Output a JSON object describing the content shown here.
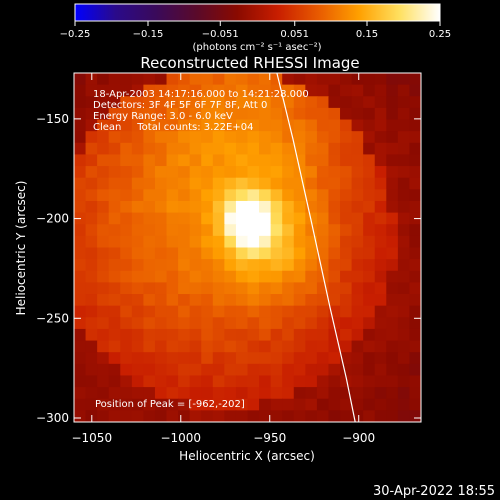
{
  "chart_data": {
    "type": "heatmap",
    "title": "Reconstructed RHESSI Image",
    "xlabel": "Heliocentric X (arcsec)",
    "ylabel": "Heliocentric Y (arcsec)",
    "xlim": [
      -1060,
      -865
    ],
    "ylim": [
      -302,
      -127
    ],
    "x_ticks": [
      -1050,
      -1000,
      -950,
      -900
    ],
    "x_tick_labels": [
      "−1050",
      "−1000",
      "−950",
      "−900"
    ],
    "y_ticks": [
      -150,
      -200,
      -250,
      -300
    ],
    "y_tick_labels": [
      "−150",
      "−200",
      "−250",
      "−300"
    ],
    "colorbar": {
      "min": -0.25,
      "max": 0.25,
      "ticks": [
        -0.25,
        -0.15,
        -0.051,
        0.051,
        0.15,
        0.25
      ],
      "tick_labels": [
        "−0.25",
        "−0.15",
        "−0.051",
        "0.051",
        "0.15",
        "0.25"
      ],
      "unit_label": "(photons cm⁻² s⁻¹ asec⁻²)",
      "colormap": [
        "#0000ff",
        "#2a0a8a",
        "#3a0a5a",
        "#5a0a2a",
        "#8a0a00",
        "#c81e00",
        "#e85a00",
        "#ffa000",
        "#ffe060",
        "#ffffff"
      ]
    },
    "info_lines": [
      "18-Apr-2003 14:17:16.000 to 14:21:28.000",
      "Detectors: 3F 4F 5F 6F 7F 8F, Att 0",
      "Energy Range: 3.0 - 6.0 keV",
      "Clean     Total counts: 3.22E+04"
    ],
    "peak_label": "Position of Peak = [-962,-202]",
    "peak": {
      "x": -962,
      "y": -202,
      "value": 0.25
    },
    "limb_curve": [
      {
        "x": -946,
        "y": -127
      },
      {
        "x": -937,
        "y": -160
      },
      {
        "x": -927,
        "y": -200
      },
      {
        "x": -916,
        "y": -245
      },
      {
        "x": -907,
        "y": -280
      },
      {
        "x": -902,
        "y": -302
      }
    ],
    "image_grid": {
      "nx": 30,
      "ny": 30,
      "emission_blobs": [
        {
          "x": -962,
          "y": -202,
          "sigma": 9,
          "amp": 0.2
        },
        {
          "x": -945,
          "y": -215,
          "sigma": 20,
          "amp": 0.06
        },
        {
          "x": -985,
          "y": -195,
          "sigma": 70,
          "amp": 0.13
        },
        {
          "x": -950,
          "y": -150,
          "sigma": 40,
          "amp": 0.04
        }
      ],
      "background": -0.02
    }
  },
  "timestamp": "30-Apr-2022 18:55"
}
